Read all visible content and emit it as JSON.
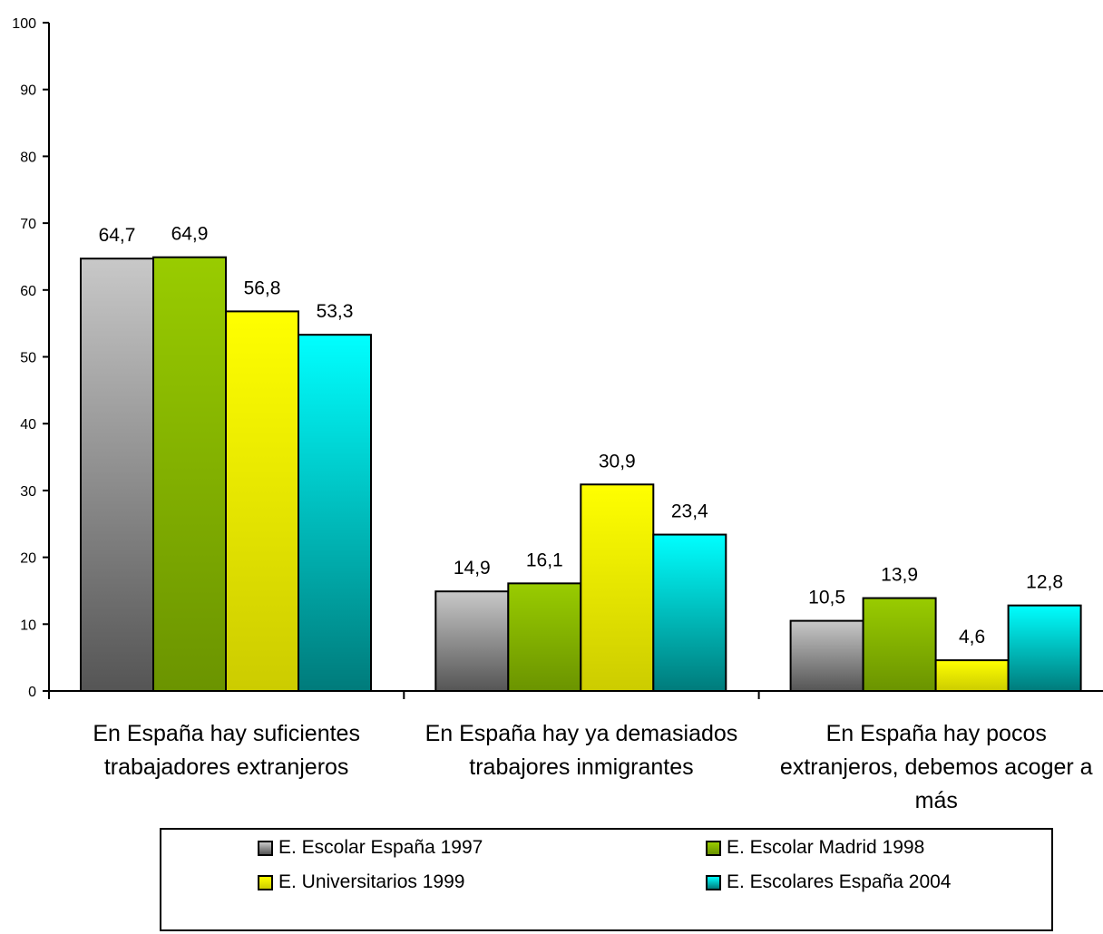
{
  "chart_data": {
    "type": "bar",
    "title": "",
    "xlabel": "",
    "ylabel": "",
    "ylim": [
      0,
      100
    ],
    "yticks": [
      0,
      10,
      20,
      30,
      40,
      50,
      60,
      70,
      80,
      90,
      100
    ],
    "grid": false,
    "legend_position": "bottom",
    "categories": [
      [
        "En España hay suficientes",
        "trabajadores extranjeros"
      ],
      [
        "En España hay ya demasiados",
        "trabajores inmigrantes"
      ],
      [
        "En España hay pocos",
        "extranjeros, debemos acoger a",
        "más"
      ]
    ],
    "series": [
      {
        "name": "E. Escolar España 1997",
        "values": [
          64.7,
          14.9,
          10.5
        ],
        "labels": [
          "64,7",
          "14,9",
          "10,5"
        ],
        "color_top": "#c8c8c8",
        "color_bottom": "#555555"
      },
      {
        "name": "E. Escolar Madrid 1998",
        "values": [
          64.9,
          16.1,
          13.9
        ],
        "labels": [
          "64,9",
          "16,1",
          "13,9"
        ],
        "color_top": "#99cc00",
        "color_bottom": "#6b9400"
      },
      {
        "name": "E. Universitarios 1999",
        "values": [
          56.8,
          30.9,
          4.6
        ],
        "labels": [
          "56,8",
          "30,9",
          "4,6"
        ],
        "color_top": "#ffff00",
        "color_bottom": "#cccc00"
      },
      {
        "name": "E. Escolares España 2004",
        "values": [
          53.3,
          23.4,
          12.8
        ],
        "labels": [
          "53,3",
          "23,4",
          "12,8"
        ],
        "color_top": "#00ffff",
        "color_bottom": "#007b7b"
      }
    ]
  }
}
